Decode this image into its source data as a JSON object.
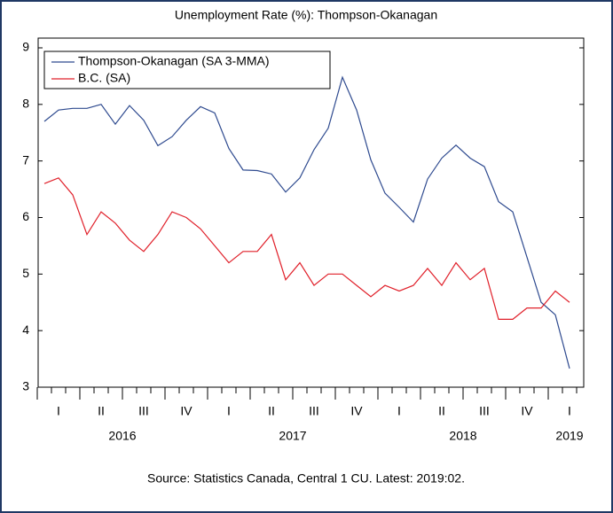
{
  "chart_data": {
    "type": "line",
    "title": "Unemployment Rate (%): Thompson-Okanagan",
    "source": "Source: Statistics Canada, Central 1 CU. Latest: 2019:02.",
    "quarter_labels": [
      "I",
      "II",
      "III",
      "IV",
      "I",
      "II",
      "III",
      "IV",
      "I",
      "II",
      "III",
      "IV",
      "I"
    ],
    "years": [
      "2016",
      "2017",
      "2018",
      "2019"
    ],
    "ylim": [
      3,
      9
    ],
    "yticks": [
      3,
      4,
      5,
      6,
      7,
      8,
      9
    ],
    "legend": "top-left",
    "series": [
      {
        "name": "Thompson-Okanagan (SA 3-MMA)",
        "color": "#2e4a8f",
        "values": [
          7.7,
          7.9,
          7.93,
          7.93,
          8.0,
          7.65,
          7.98,
          7.72,
          7.27,
          7.43,
          7.72,
          7.96,
          7.85,
          7.22,
          6.84,
          6.83,
          6.77,
          6.45,
          6.7,
          7.2,
          7.58,
          8.48,
          7.9,
          7.02,
          6.43,
          6.18,
          5.92,
          6.68,
          7.05,
          7.28,
          7.05,
          6.9,
          6.28,
          6.1,
          5.3,
          4.5,
          4.28,
          3.33
        ]
      },
      {
        "name": "B.C. (SA)",
        "color": "#e0202a",
        "values": [
          6.6,
          6.7,
          6.4,
          5.7,
          6.1,
          5.9,
          5.6,
          5.4,
          5.7,
          6.1,
          6.0,
          5.8,
          5.5,
          5.2,
          5.4,
          5.4,
          5.7,
          4.9,
          5.2,
          4.8,
          5.0,
          5.0,
          4.8,
          4.6,
          4.8,
          4.7,
          4.8,
          5.1,
          4.8,
          5.2,
          4.9,
          5.1,
          4.2,
          4.2,
          4.4,
          4.4,
          4.7,
          4.5
        ]
      }
    ]
  }
}
